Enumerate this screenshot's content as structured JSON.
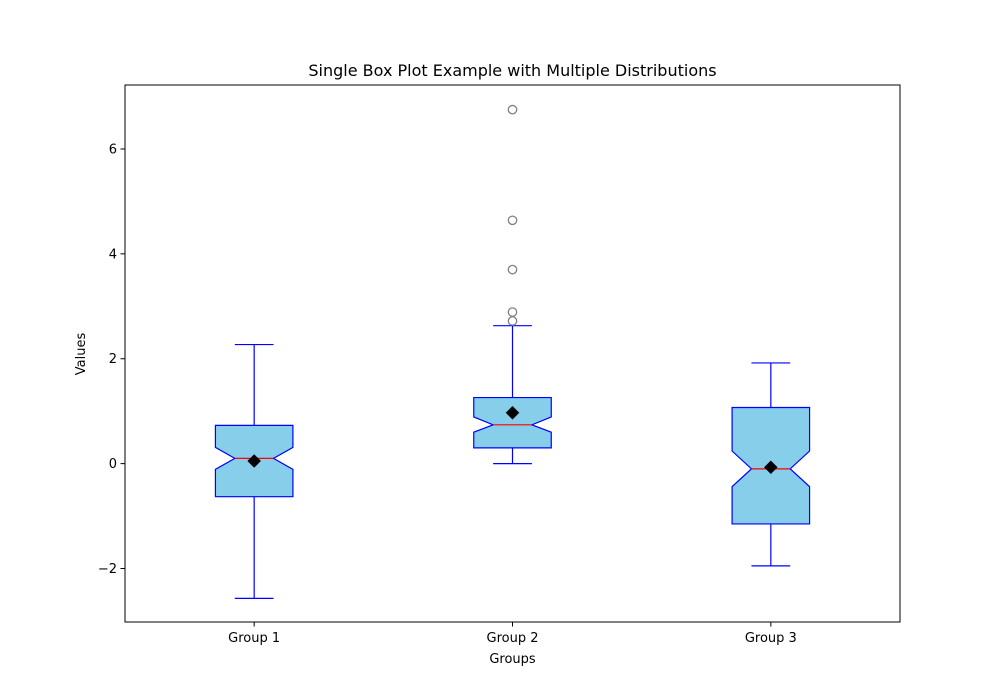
{
  "chart_data": {
    "type": "box",
    "title": "Single Box Plot Example with Multiple Distributions",
    "xlabel": "Groups",
    "ylabel": "Values",
    "ylim": [
      -3.02,
      7.22
    ],
    "yticks": [
      -2,
      0,
      2,
      4,
      6
    ],
    "ytick_labels": [
      "−2",
      "0",
      "2",
      "4",
      "6"
    ],
    "notched": true,
    "grid": false,
    "colors": {
      "box_fill": "#87ceeb",
      "box_edge": "#0000ff",
      "whisker": "#0000ff",
      "median": "#ff0000",
      "mean_marker": "#000000",
      "outlier_edge": "#808080"
    },
    "groups": [
      {
        "label": "Group 1",
        "whisker_low": -2.57,
        "q1": -0.63,
        "median": 0.1,
        "q3": 0.73,
        "whisker_high": 2.27,
        "notch_low": -0.11,
        "notch_high": 0.31,
        "mean": 0.05,
        "outliers": []
      },
      {
        "label": "Group 2",
        "whisker_low": 0.0,
        "q1": 0.3,
        "median": 0.74,
        "q3": 1.26,
        "whisker_high": 2.63,
        "notch_low": 0.6,
        "notch_high": 0.89,
        "mean": 0.97,
        "outliers": [
          2.72,
          2.89,
          3.7,
          4.64,
          6.75
        ]
      },
      {
        "label": "Group 3",
        "whisker_low": -1.95,
        "q1": -1.15,
        "median": -0.1,
        "q3": 1.07,
        "whisker_high": 1.92,
        "notch_low": -0.44,
        "notch_high": 0.24,
        "mean": -0.07,
        "outliers": []
      }
    ]
  }
}
